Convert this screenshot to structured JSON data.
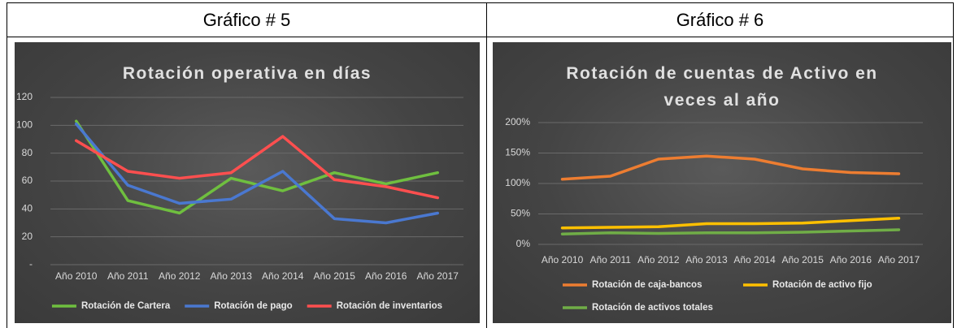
{
  "table": {
    "headers": [
      "Gráfico # 5",
      "Gráfico # 6"
    ]
  },
  "chart_data": [
    {
      "type": "line",
      "title": "Rotación operativa en días",
      "categories": [
        "Año 2010",
        "Año 2011",
        "Año 2012",
        "Año 2013",
        "Año 2014",
        "Año 2015",
        "Año 2016",
        "Año 2017"
      ],
      "series": [
        {
          "name": "Rotación de Cartera",
          "color": "#6fbf3f",
          "values": [
            103,
            46,
            37,
            62,
            53,
            66,
            58,
            66
          ]
        },
        {
          "name": "Rotación de pago",
          "color": "#4a78d0",
          "values": [
            101,
            57,
            44,
            47,
            67,
            33,
            30,
            37
          ]
        },
        {
          "name": "Rotación de inventarios",
          "color": "#ff4f4f",
          "values": [
            89,
            67,
            62,
            66,
            92,
            61,
            56,
            48
          ]
        }
      ],
      "ylim": [
        0,
        120
      ],
      "yticks": [
        {
          "value": 0,
          "label": "-"
        },
        20,
        40,
        60,
        80,
        100,
        120
      ],
      "grid": true,
      "legend": "bottom"
    },
    {
      "type": "line",
      "title": "Rotación de cuentas de Activo en veces al año",
      "categories": [
        "Año 2010",
        "Año 2011",
        "Año 2012",
        "Año 2013",
        "Año 2014",
        "Año 2015",
        "Año 2016",
        "Año 2017"
      ],
      "series": [
        {
          "name": "Rotación de caja-bancos",
          "color": "#ed7d31",
          "values": [
            107,
            112,
            140,
            145,
            140,
            124,
            118,
            116
          ]
        },
        {
          "name": "Rotación de activo fijo",
          "color": "#ffc000",
          "values": [
            27,
            28,
            29,
            34,
            34,
            35,
            39,
            43
          ]
        },
        {
          "name": "Rotación de activos totales",
          "color": "#70ad47",
          "values": [
            17,
            19,
            18,
            19,
            19,
            20,
            22,
            24
          ]
        }
      ],
      "ylim": [
        0,
        200
      ],
      "yticks": [
        {
          "value": 0,
          "label": "0%"
        },
        {
          "value": 50,
          "label": "50%"
        },
        {
          "value": 100,
          "label": "100%"
        },
        {
          "value": 150,
          "label": "150%"
        },
        {
          "value": 200,
          "label": "200%"
        }
      ],
      "grid": true,
      "legend": "bottom"
    }
  ]
}
